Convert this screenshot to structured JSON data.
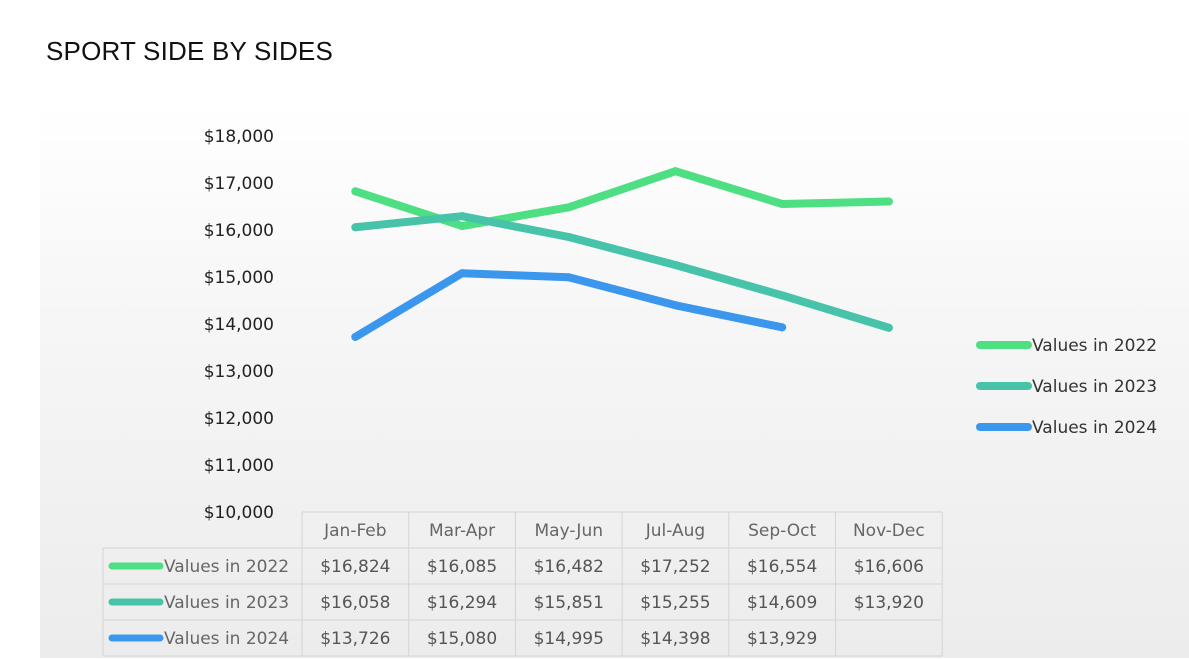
{
  "page": {
    "title": "SPORT SIDE BY SIDES"
  },
  "chart_data": {
    "type": "line",
    "title": "SPORT SIDE BY SIDES",
    "categories": [
      "Jan-Feb",
      "Mar-Apr",
      "May-Jun",
      "Jul-Aug",
      "Sep-Oct",
      "Nov-Dec"
    ],
    "ylim": [
      10000,
      18000
    ],
    "yticks": [
      10000,
      11000,
      12000,
      13000,
      14000,
      15000,
      16000,
      17000,
      18000
    ],
    "ytick_labels": [
      "$10,000",
      "$11,000",
      "$12,000",
      "$13,000",
      "$14,000",
      "$15,000",
      "$16,000",
      "$17,000",
      "$18,000"
    ],
    "xlabel": "",
    "ylabel": "",
    "grid": false,
    "legend": "right",
    "series": [
      {
        "name": "Values in 2022",
        "color": "#4ddf82",
        "values": [
          16824,
          16085,
          16482,
          17252,
          16554,
          16606
        ],
        "labels": [
          "$16,824",
          "$16,085",
          "$16,482",
          "$17,252",
          "$16,554",
          "$16,606"
        ]
      },
      {
        "name": "Values in 2023",
        "color": "#47c3a9",
        "values": [
          16058,
          16294,
          15851,
          15255,
          14609,
          13920
        ],
        "labels": [
          "$16,058",
          "$16,294",
          "$15,851",
          "$15,255",
          "$14,609",
          "$13,920"
        ]
      },
      {
        "name": "Values in 2024",
        "color": "#3b97ee",
        "values": [
          13726,
          15080,
          14995,
          14398,
          13929,
          null
        ],
        "labels": [
          "$13,726",
          "$15,080",
          "$14,995",
          "$14,398",
          "$13,929",
          ""
        ]
      }
    ]
  }
}
